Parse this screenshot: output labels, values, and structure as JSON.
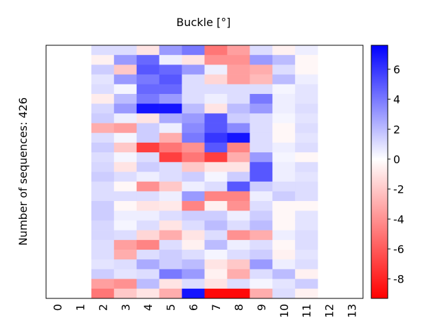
{
  "chart_data": {
    "type": "heatmap",
    "title": "Buckle [°]",
    "xlabel": "",
    "ylabel": "Number of sequences: 426",
    "x_tick_labels": [
      "0",
      "1",
      "2",
      "3",
      "4",
      "5",
      "6",
      "7",
      "8",
      "9",
      "10",
      "11",
      "12",
      "13"
    ],
    "colorbar": {
      "colormap": "bwr",
      "vmin": -9.3,
      "vmax": 7.6,
      "tick_values": [
        6,
        4,
        2,
        0,
        -2,
        -4,
        -6,
        -8
      ],
      "tick_labels": [
        "6",
        "4",
        "2",
        "0",
        "-2",
        "-4",
        "-6",
        "-8"
      ]
    },
    "note_rows": "values approximated as 26 row bands per column (top to bottom); null = no data",
    "columns": [
      null,
      null,
      [
        1,
        -0.5,
        1.5,
        0.8,
        1,
        -0.7,
        1.2,
        1.5,
        -3,
        1,
        1.5,
        1,
        1.2,
        1.5,
        1,
        1,
        1.5,
        1.5,
        1.2,
        1.2,
        1,
        1,
        0.8,
        1.5,
        -3.5,
        -5
      ],
      [
        1,
        3,
        -2,
        3,
        0.3,
        2,
        3,
        0.5,
        -3.5,
        0.3,
        -2,
        0.3,
        -1,
        1,
        -0.3,
        1,
        -0.3,
        0.5,
        0.3,
        1,
        -3.5,
        -3,
        1,
        0.8,
        -4,
        -2
      ],
      [
        -1,
        4.5,
        5,
        4,
        4.5,
        4,
        7,
        -1,
        1.5,
        1.5,
        -7,
        1,
        1.5,
        0.5,
        -4,
        1,
        -1,
        0.5,
        1,
        -1.5,
        -4.5,
        1,
        2.5,
        1,
        2,
        -1
      ],
      [
        3,
        0.5,
        4.5,
        5,
        4.5,
        3,
        7,
        2.5,
        0.5,
        -3,
        -5,
        -7,
        1,
        1,
        -2,
        0.5,
        -0.8,
        1,
        -1,
        -3,
        1,
        1.5,
        1.5,
        4,
        -1,
        -3
      ],
      [
        4,
        -1,
        3,
        1,
        1,
        1,
        2,
        3,
        3.5,
        4,
        -4,
        -5,
        -2,
        1.5,
        0.5,
        3,
        -4.5,
        1.5,
        1,
        -1,
        -0.5,
        1,
        2,
        3,
        1,
        7
      ],
      [
        -5,
        -4,
        0.5,
        -1.5,
        1,
        0.5,
        -1,
        5,
        5,
        6,
        5,
        -7,
        -1,
        0.3,
        1,
        -4.5,
        -0.5,
        1.5,
        2,
        1,
        2,
        0.3,
        -1,
        -0.5,
        -1,
        -9
      ],
      [
        -3.5,
        -4,
        -3.5,
        -3.5,
        1,
        1,
        2,
        1.5,
        3.5,
        7,
        -4.5,
        -3,
        -1,
        1.5,
        5,
        -4.5,
        -4,
        0.5,
        1,
        -4,
        0.5,
        1,
        -2,
        -3,
        1,
        -9
      ],
      [
        1,
        3,
        -3,
        -2.5,
        1,
        4,
        3,
        1,
        1,
        1,
        1,
        3,
        5,
        5,
        1.5,
        0.5,
        1,
        1.5,
        2,
        -3,
        1,
        1.5,
        3,
        1,
        0.3,
        -3
      ],
      [
        -0.5,
        2,
        1,
        2,
        0.3,
        0.5,
        0.5,
        0.3,
        -0.3,
        -0.3,
        0.5,
        0.3,
        0.5,
        0.5,
        1,
        1.5,
        -0.3,
        -0.3,
        -0.3,
        0.5,
        -0.3,
        -0.5,
        0.5,
        2,
        0.8,
        1
      ],
      [
        0.5,
        -0.3,
        -0.3,
        0.5,
        0.8,
        0.8,
        1,
        0.8,
        1,
        0.8,
        1,
        -0.3,
        1,
        0.8,
        1,
        1,
        -0.3,
        0.8,
        0.8,
        1,
        1,
        0.8,
        1,
        -0.5,
        1.5,
        -0.5
      ],
      null,
      null
    ]
  }
}
